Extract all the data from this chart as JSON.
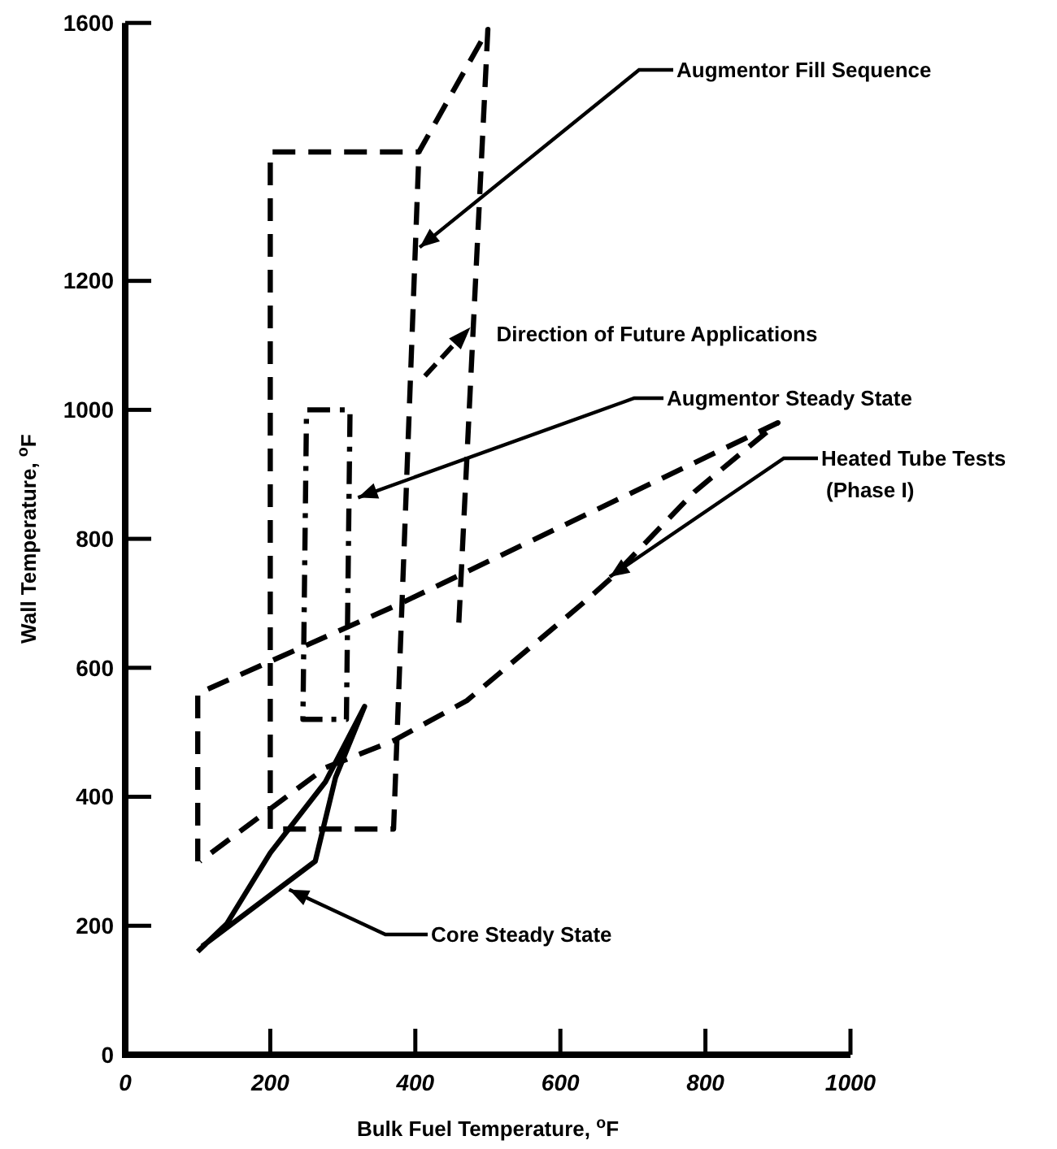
{
  "chart_data": {
    "type": "line",
    "xlabel": "Bulk Fuel Temperature, $^{o}$F",
    "ylabel": "Wall Temperature, $^{o}$F",
    "xlim": [
      0,
      1000
    ],
    "xticks": [
      0,
      200,
      400,
      600,
      800,
      1000
    ],
    "ylim": [
      0,
      1600
    ],
    "yticks": [
      0,
      200,
      400,
      600,
      800,
      1000,
      1200,
      1600
    ],
    "grid": false,
    "marker": "none",
    "series": [
      {
        "name": "Augmentor Fill Sequence",
        "color": "#000000",
        "line_style": "dashed",
        "x": [
          460,
          500,
          405,
          200,
          200,
          370,
          405
        ],
        "values": [
          670,
          1590,
          1400,
          1400,
          350,
          350,
          1400
        ]
      },
      {
        "name": "Augmentor Steady State",
        "color": "#000000",
        "line_style": "dotted",
        "x": [
          272,
          245,
          250,
          310,
          305,
          284
        ],
        "values": [
          520,
          520,
          1000,
          1000,
          520,
          520
        ]
      },
      {
        "name": "Heated Tube Tests (Phase I)",
        "color": "#000000",
        "line_style": "dashed",
        "x": [
          100,
          100,
          200,
          380,
          900,
          785,
          672,
          634,
          471,
          370,
          276,
          103
        ],
        "values": [
          300,
          560,
          610,
          700,
          980,
          873,
          741,
          703,
          549,
          487,
          445,
          300
        ]
      },
      {
        "name": "Core Steady State",
        "color": "#000000",
        "line_style": "solid",
        "x": [
          100,
          140,
          200,
          276,
          330,
          290,
          262,
          106
        ],
        "values": [
          160,
          203,
          313,
          423,
          540,
          430,
          300,
          168
        ]
      }
    ],
    "annotations": [
      {
        "text": "Direction of Future Applications",
        "x": 476,
        "y": 1128
      }
    ]
  }
}
